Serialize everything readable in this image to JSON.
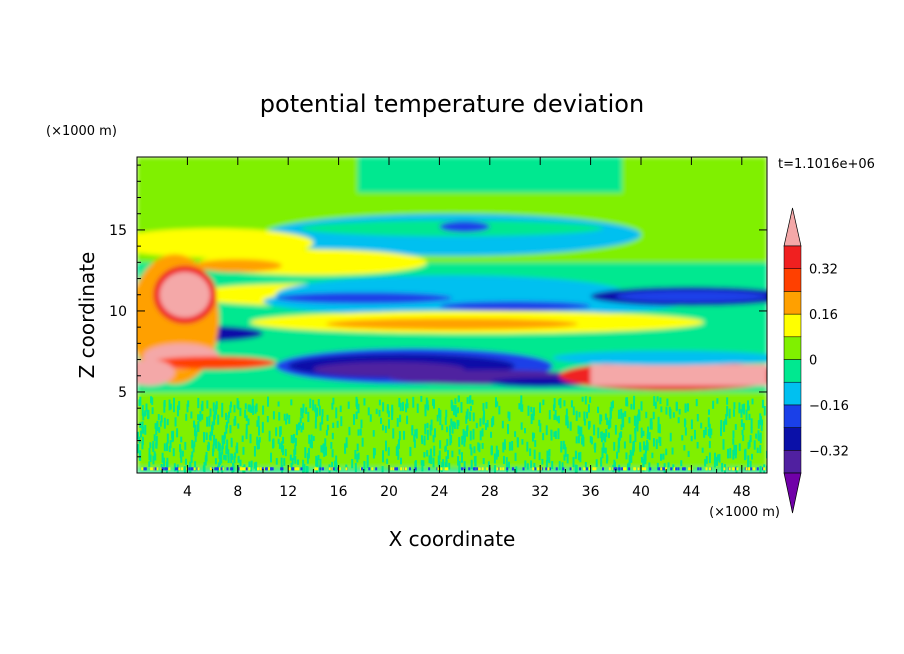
{
  "chart_data": {
    "type": "heatmap",
    "title": "potential temperature deviation",
    "xlabel": "X coordinate",
    "ylabel": "Z coordinate",
    "x_unit": "(×1000 m)",
    "y_unit": "(×1000 m)",
    "time_label": "t=1.1016e+06",
    "xlim": [
      0,
      50
    ],
    "ylim": [
      0,
      19.5
    ],
    "x_ticks": [
      "4",
      "8",
      "12",
      "16",
      "20",
      "24",
      "28",
      "32",
      "36",
      "40",
      "44",
      "48"
    ],
    "y_ticks": [
      "5",
      "10",
      "15"
    ],
    "grid": false,
    "colorbar": {
      "position": "right",
      "tick_labels": [
        "0.32",
        "0.16",
        "0",
        "−0.16",
        "−0.32"
      ],
      "levels": [
        -0.4,
        -0.32,
        -0.24,
        -0.16,
        -0.08,
        0,
        0.08,
        0.16,
        0.24,
        0.32,
        0.4
      ],
      "colors": [
        "#7000a8",
        "#5020a0",
        "#0a10a8",
        "#1a40e8",
        "#00c0f0",
        "#00e890",
        "#80f000",
        "#ffff00",
        "#ffa000",
        "#ff4000",
        "#f02020",
        "#f4a8a8"
      ]
    },
    "features": [
      {
        "name": "warm anomaly",
        "x": 4,
        "z": 11,
        "value": 0.4
      },
      {
        "name": "warm layer",
        "x_range": [
          36,
          50
        ],
        "z": 5.8,
        "value": 0.4
      },
      {
        "name": "cold band",
        "x_range": [
          10,
          34
        ],
        "z": 6.5,
        "value": -0.36
      },
      {
        "name": "cold band",
        "x_range": [
          6,
          50
        ],
        "z": 10.5,
        "value": -0.24
      },
      {
        "name": "cool patch",
        "x": 22,
        "z": 15,
        "value": -0.12
      },
      {
        "name": "warm band",
        "x_range": [
          0,
          16
        ],
        "z": 14,
        "value": 0.16
      }
    ]
  }
}
